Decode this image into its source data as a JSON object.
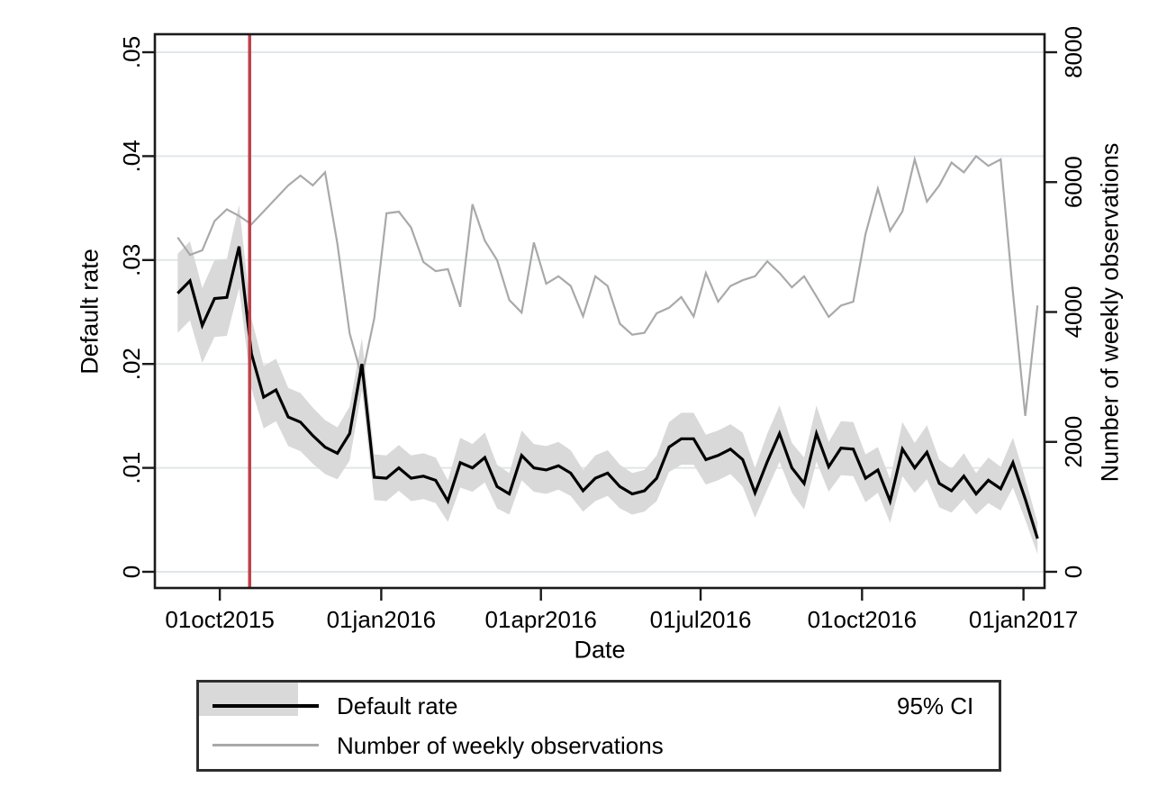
{
  "figure": {
    "background": "#ffffff"
  },
  "axes": {
    "y_left_title": "Default rate",
    "y_right_title": "Number of weekly observations",
    "x_title": "Date"
  },
  "legend": {
    "items": [
      {
        "label": "Default rate",
        "swatch": "line-black"
      },
      {
        "label": "95% CI",
        "swatch": "area-gray"
      },
      {
        "label": "Number of weekly observations",
        "swatch": "line-gray"
      }
    ]
  },
  "colors": {
    "default_rate_line": "#000000",
    "observations_line": "#a9a9a9",
    "ci_band": "#d9d9d9",
    "vline": "#bf4149",
    "grid": "#dfe7ea",
    "axis": "#1a1a1a",
    "text": "#000000"
  },
  "chart_data": {
    "type": "line",
    "title": "",
    "xlabel": "Date",
    "grid": {
      "show": true,
      "orientation": "horizontal"
    },
    "x_axis": {
      "day_range": [
        -13,
        494
      ],
      "ticks": [
        {
          "label": "01oct2015",
          "day": 24
        },
        {
          "label": "01jan2016",
          "day": 116
        },
        {
          "label": "01apr2016",
          "day": 207
        },
        {
          "label": "01jul2016",
          "day": 298
        },
        {
          "label": "01oct2016",
          "day": 390
        },
        {
          "label": "01jan2017",
          "day": 482
        }
      ]
    },
    "y_left": {
      "label": "Default rate",
      "ticks": [
        0,
        0.01,
        0.02,
        0.03,
        0.04,
        0.05
      ],
      "tick_labels": [
        "0",
        ".01",
        ".02",
        ".03",
        ".04",
        ".05"
      ],
      "range": [
        0,
        0.0517
      ]
    },
    "y_right": {
      "label": "Number of weekly observations",
      "ticks": [
        0,
        2000,
        4000,
        6000,
        8000
      ],
      "tick_labels": [
        "0",
        "2000",
        "4000",
        "6000",
        "8000"
      ],
      "range": [
        0,
        8276
      ]
    },
    "vline": {
      "date": "18oct2015",
      "day": 41,
      "color": "#bf4149"
    },
    "dates": [
      "07sep2015",
      "14sep2015",
      "21sep2015",
      "28sep2015",
      "05oct2015",
      "12oct2015",
      "19oct2015",
      "26oct2015",
      "02nov2015",
      "09nov2015",
      "16nov2015",
      "23nov2015",
      "30nov2015",
      "07dec2015",
      "14dec2015",
      "21dec2015",
      "28dec2015",
      "04jan2016",
      "11jan2016",
      "18jan2016",
      "25jan2016",
      "01feb2016",
      "08feb2016",
      "15feb2016",
      "22feb2016",
      "29feb2016",
      "07mar2016",
      "14mar2016",
      "21mar2016",
      "28mar2016",
      "04apr2016",
      "11apr2016",
      "18apr2016",
      "25apr2016",
      "02may2016",
      "09may2016",
      "16may2016",
      "23may2016",
      "30may2016",
      "06jun2016",
      "13jun2016",
      "20jun2016",
      "27jun2016",
      "04jul2016",
      "11jul2016",
      "18jul2016",
      "25jul2016",
      "01aug2016",
      "08aug2016",
      "15aug2016",
      "22aug2016",
      "29aug2016",
      "05sep2016",
      "12sep2016",
      "19sep2016",
      "26sep2016",
      "03oct2016",
      "10oct2016",
      "17oct2016",
      "24oct2016",
      "31oct2016",
      "07nov2016",
      "14nov2016",
      "21nov2016",
      "28nov2016",
      "05dec2016",
      "12dec2016",
      "19dec2016",
      "26dec2016",
      "02jan2017",
      "09jan2017"
    ],
    "series": [
      {
        "name": "Default rate",
        "axis": "left",
        "color": "#000000",
        "values": [
          0.0268,
          0.028,
          0.0237,
          0.0263,
          0.0264,
          0.0313,
          0.021,
          0.0168,
          0.0175,
          0.0149,
          0.0144,
          0.0131,
          0.012,
          0.0114,
          0.0133,
          0.02,
          0.0091,
          0.009,
          0.01,
          0.009,
          0.0092,
          0.0088,
          0.0068,
          0.0105,
          0.01,
          0.011,
          0.0082,
          0.0075,
          0.0112,
          0.01,
          0.0098,
          0.0102,
          0.0095,
          0.0078,
          0.009,
          0.0095,
          0.0082,
          0.0075,
          0.0078,
          0.009,
          0.012,
          0.0128,
          0.0128,
          0.0108,
          0.0112,
          0.0118,
          0.0108,
          0.0076,
          0.0106,
          0.0133,
          0.01,
          0.0085,
          0.0133,
          0.0101,
          0.0119,
          0.0118,
          0.009,
          0.0098,
          0.0068,
          0.0118,
          0.01,
          0.0115,
          0.0085,
          0.0078,
          0.0092,
          0.0075,
          0.0088,
          0.008,
          0.0105,
          0.007,
          0.0032
        ]
      },
      {
        "name": "Number of weekly observations",
        "axis": "right",
        "color": "#a9a9a9",
        "values": [
          5150,
          4880,
          4950,
          5400,
          5580,
          5480,
          5350,
          5550,
          5750,
          5950,
          6100,
          5950,
          6150,
          5050,
          3670,
          3000,
          3900,
          5520,
          5545,
          5300,
          4770,
          4630,
          4660,
          4080,
          5660,
          5100,
          4800,
          4185,
          3990,
          5070,
          4435,
          4550,
          4400,
          3935,
          4550,
          4400,
          3820,
          3650,
          3680,
          3980,
          4065,
          4230,
          3930,
          4600,
          4160,
          4400,
          4490,
          4550,
          4780,
          4600,
          4380,
          4550,
          4240,
          3925,
          4100,
          4160,
          5200,
          5900,
          5250,
          5550,
          6350,
          5700,
          5950,
          6300,
          6150,
          6400,
          6250,
          6350,
          4300,
          2400,
          4100
        ]
      }
    ],
    "ci_band": {
      "name": "95% CI",
      "applies_to": "Default rate",
      "color": "#d9d9d9",
      "half_width": [
        0.0038,
        0.0038,
        0.0036,
        0.0037,
        0.0037,
        0.004,
        0.0034,
        0.003,
        0.003,
        0.0028,
        0.0028,
        0.0027,
        0.0026,
        0.0025,
        0.0026,
        0.0025,
        0.0022,
        0.0022,
        0.0022,
        0.0022,
        0.0022,
        0.0022,
        0.002,
        0.0024,
        0.0023,
        0.0024,
        0.0021,
        0.002,
        0.0024,
        0.0023,
        0.0023,
        0.0023,
        0.0022,
        0.002,
        0.0022,
        0.0022,
        0.0021,
        0.002,
        0.002,
        0.0022,
        0.0024,
        0.0025,
        0.0025,
        0.0024,
        0.0024,
        0.0024,
        0.0026,
        0.0024,
        0.0027,
        0.0027,
        0.0024,
        0.0025,
        0.0027,
        0.0024,
        0.0026,
        0.0026,
        0.0023,
        0.0022,
        0.0021,
        0.0026,
        0.0024,
        0.0026,
        0.0023,
        0.0021,
        0.0022,
        0.002,
        0.0022,
        0.0021,
        0.0024,
        0.002,
        0.0015
      ]
    }
  }
}
